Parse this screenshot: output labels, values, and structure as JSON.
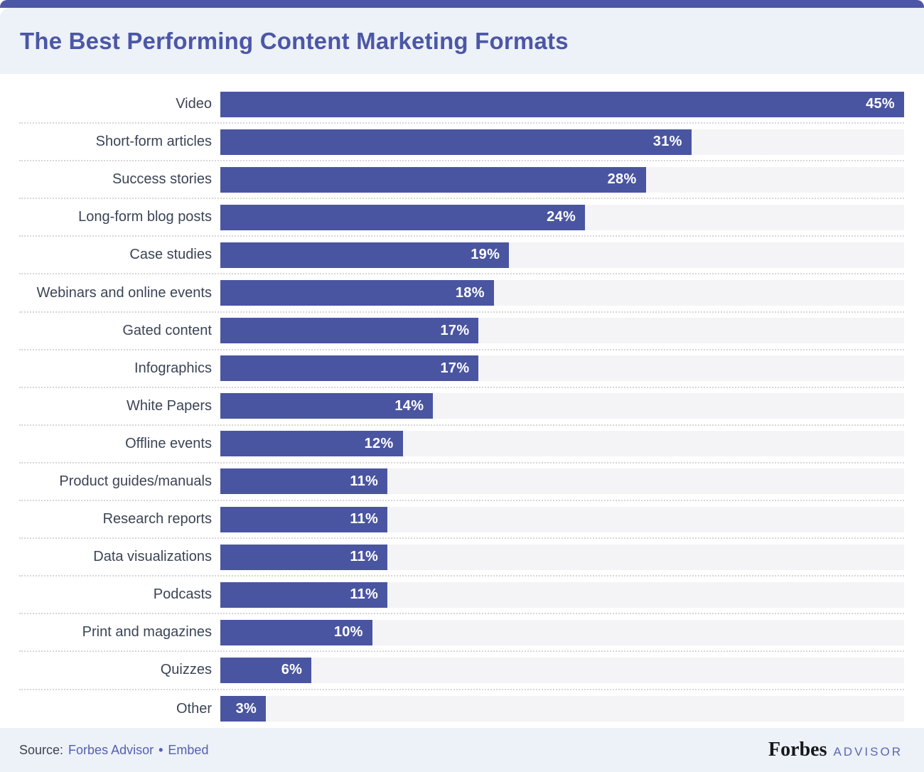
{
  "header": {
    "title": "The Best Performing Content Marketing Formats"
  },
  "chart_data": {
    "type": "bar",
    "orientation": "horizontal",
    "title": "The Best Performing Content Marketing Formats",
    "categories": [
      "Video",
      "Short-form articles",
      "Success stories",
      "Long-form blog posts",
      "Case studies",
      "Webinars and online events",
      "Gated content",
      "Infographics",
      "White Papers",
      "Offline events",
      "Product guides/manuals",
      "Research reports",
      "Data visualizations",
      "Podcasts",
      "Print and magazines",
      "Quizzes",
      "Other"
    ],
    "values": [
      45,
      31,
      28,
      24,
      19,
      18,
      17,
      17,
      14,
      12,
      11,
      11,
      11,
      11,
      10,
      6,
      3
    ],
    "value_labels": [
      "45%",
      "31%",
      "28%",
      "24%",
      "19%",
      "18%",
      "17%",
      "17%",
      "14%",
      "12%",
      "11%",
      "11%",
      "11%",
      "11%",
      "10%",
      "6%",
      "3%"
    ],
    "xlim": [
      0,
      45
    ],
    "ylabel": "",
    "xlabel": "",
    "legend": "none",
    "grid": "dotted row separators",
    "value_label_position": "inside-end"
  },
  "footer": {
    "source_prefix": "Source:",
    "link_forbes_advisor": "Forbes Advisor",
    "separator": "•",
    "link_embed": "Embed",
    "brand_primary": "Forbes",
    "brand_secondary": "ADVISOR"
  },
  "colors": {
    "bar": "#4a55a1",
    "bar_track": "#f4f4f6",
    "top_strip": "#4c57a7",
    "header_bg": "#edf1f8",
    "footer_bg": "#edf1f8",
    "title_text": "#4b57a6",
    "category_text": "#3b4456",
    "value_text": "#ffffff",
    "dotted_separator": "#d6d6d6",
    "link_text": "#5561ae",
    "source_text": "#3c434f",
    "brand_primary_text": "#17181a",
    "brand_secondary_text": "#5968b5"
  }
}
